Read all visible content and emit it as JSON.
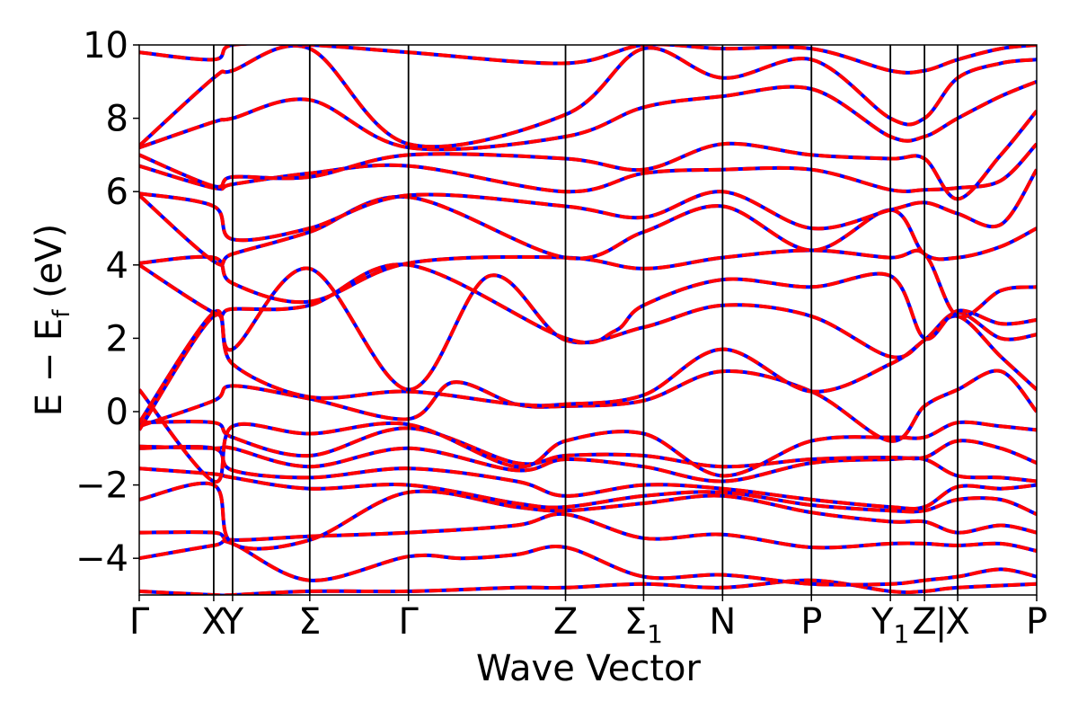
{
  "chart_data": {
    "type": "line",
    "xlabel": "Wave Vector",
    "ylabel": "E − E",
    "ylabel_sub": "f",
    "ylabel_unit": " (eV)",
    "ylim": [
      -5,
      10
    ],
    "yticks": [
      -4,
      -2,
      0,
      2,
      4,
      6,
      8,
      10
    ],
    "ytick_labels": [
      "−4",
      "−2",
      "0",
      "2",
      "4",
      "6",
      "8",
      "10"
    ],
    "xlim": [
      0,
      10
    ],
    "kpoints": [
      {
        "x": 0.0,
        "label": "Γ"
      },
      {
        "x": 0.83,
        "label": "X"
      },
      {
        "x": 1.04,
        "label": "Y"
      },
      {
        "x": 1.9,
        "label": "Σ"
      },
      {
        "x": 3.0,
        "label": "Γ"
      },
      {
        "x": 4.75,
        "label": "Z"
      },
      {
        "x": 5.62,
        "label": "Σ",
        "sub": "1"
      },
      {
        "x": 6.5,
        "label": "N"
      },
      {
        "x": 7.49,
        "label": "P"
      },
      {
        "x": 8.37,
        "label": "Y",
        "sub": "1"
      },
      {
        "x": 8.75,
        "label": "Z"
      },
      {
        "x": 9.12,
        "label": "X"
      },
      {
        "x": 10.0,
        "label": "P"
      }
    ],
    "break_mark": "|",
    "series_colors": {
      "primary": "#ff0000",
      "overlay": "#0000ff"
    },
    "bands": [
      {
        "x": [
          0,
          0.83,
          1.04,
          1.9,
          3.0,
          4.2,
          4.75,
          5.62,
          6.5,
          7.49,
          8.37,
          8.75,
          9.12,
          10.0
        ],
        "y": [
          -4.9,
          -5.0,
          -5.0,
          -4.9,
          -4.9,
          -4.8,
          -4.8,
          -4.7,
          -4.8,
          -4.6,
          -4.9,
          -4.9,
          -4.8,
          -4.7
        ]
      },
      {
        "x": [
          0,
          0.83,
          1.04,
          1.9,
          3.0,
          3.6,
          4.2,
          4.75,
          5.62,
          6.5,
          7.49,
          8.37,
          8.75,
          9.12,
          9.6,
          10.0
        ],
        "y": [
          -4.0,
          -3.65,
          -3.6,
          -4.6,
          -3.95,
          -4.0,
          -3.9,
          -3.7,
          -4.5,
          -4.45,
          -4.7,
          -4.7,
          -4.6,
          -4.5,
          -4.3,
          -4.5
        ]
      },
      {
        "x": [
          0,
          0.83,
          1.04,
          1.9,
          3.0,
          4.2,
          4.75,
          5.62,
          6.5,
          7.49,
          8.37,
          8.75,
          9.12,
          9.6,
          10.0
        ],
        "y": [
          -3.3,
          -3.3,
          -3.5,
          -3.4,
          -3.3,
          -3.1,
          -2.8,
          -3.45,
          -3.35,
          -3.7,
          -3.6,
          -3.6,
          -3.65,
          -3.6,
          -3.8
        ]
      },
      {
        "x": [
          0,
          0.83,
          1.04,
          1.9,
          3.0,
          4.2,
          4.75,
          5.62,
          6.5,
          7.49,
          8.37,
          8.75,
          9.12,
          9.6,
          10.0
        ],
        "y": [
          -2.4,
          -2.0,
          -3.6,
          -3.5,
          -2.2,
          -2.6,
          -2.7,
          -2.5,
          -2.3,
          -2.75,
          -3.0,
          -3.0,
          -3.3,
          -3.1,
          -3.3
        ]
      },
      {
        "x": [
          0,
          0.83,
          1.04,
          1.9,
          3.0,
          4.2,
          4.75,
          5.62,
          6.5,
          7.49,
          8.37,
          8.75,
          9.12,
          9.6,
          10.0
        ],
        "y": [
          -1.55,
          -1.7,
          -1.8,
          -2.1,
          -2.0,
          -2.5,
          -2.6,
          -2.3,
          -2.2,
          -2.55,
          -2.7,
          -2.7,
          -2.4,
          -2.4,
          -2.8
        ]
      },
      {
        "x": [
          0,
          0.83,
          1.04,
          1.9,
          3.0,
          4.2,
          4.75,
          5.62,
          6.5,
          7.49,
          8.37,
          8.75,
          9.12,
          9.6,
          10.0
        ],
        "y": [
          -1.0,
          -1.0,
          -1.6,
          -1.8,
          -1.55,
          -1.9,
          -2.3,
          -2.0,
          -2.1,
          -2.4,
          -2.6,
          -2.6,
          -2.05,
          -2.1,
          -2.0
        ]
      },
      {
        "x": [
          0,
          0.83,
          1.04,
          1.9,
          3.0,
          4.2,
          4.75,
          5.62,
          6.5,
          7.49,
          8.37,
          8.75,
          9.12,
          9.6,
          10.0
        ],
        "y": [
          -0.95,
          -1.0,
          -1.0,
          -1.5,
          -1.0,
          -1.6,
          -1.3,
          -1.5,
          -1.9,
          -1.4,
          -1.3,
          -1.3,
          -1.75,
          -1.8,
          -1.9
        ]
      },
      {
        "x": [
          0,
          0.83,
          1.04,
          1.9,
          3.0,
          4.2,
          4.75,
          5.62,
          6.5,
          7.49,
          8.37,
          8.75,
          9.12,
          9.6,
          10.0
        ],
        "y": [
          -0.3,
          -0.3,
          -0.7,
          -1.2,
          -0.45,
          -1.4,
          -1.2,
          -1.2,
          -1.5,
          -1.3,
          -1.25,
          -1.25,
          -0.8,
          -1.0,
          -1.4
        ]
      },
      {
        "x": [
          0,
          0.83,
          1.04,
          1.9,
          3.0,
          4.2,
          4.75,
          5.62,
          6.5,
          7.49,
          8.37,
          8.75,
          9.12,
          9.6,
          10.0
        ],
        "y": [
          0.6,
          -1.9,
          -0.4,
          -0.6,
          -0.35,
          -1.5,
          -0.8,
          -0.6,
          -1.75,
          -0.8,
          -0.7,
          -0.7,
          -0.3,
          -0.4,
          -0.5
        ]
      },
      {
        "x": [
          0,
          0.83,
          1.04,
          1.9,
          3.0,
          3.5,
          4.2,
          4.75,
          5.62,
          6.5,
          7.49,
          8.37,
          8.75,
          9.12,
          9.6,
          10.0
        ],
        "y": [
          -0.4,
          0.3,
          0.7,
          0.35,
          -0.2,
          0.8,
          0.2,
          0.15,
          0.3,
          1.1,
          0.55,
          -0.8,
          0.15,
          0.6,
          1.1,
          0.0
        ]
      },
      {
        "x": [
          0,
          0.83,
          1.04,
          1.9,
          3.0,
          4.2,
          4.75,
          5.62,
          6.5,
          7.49,
          8.37,
          8.75,
          9.12,
          9.6,
          10.0
        ],
        "y": [
          -0.5,
          2.6,
          1.3,
          0.4,
          0.55,
          0.2,
          0.2,
          0.45,
          1.7,
          0.55,
          1.3,
          1.95,
          2.6,
          1.5,
          0.6
        ]
      },
      {
        "x": [
          0,
          0.83,
          1.04,
          1.9,
          3.0,
          3.9,
          4.75,
          5.62,
          6.5,
          7.49,
          8.37,
          8.75,
          9.12,
          9.6,
          10.0
        ],
        "y": [
          -0.3,
          2.7,
          1.7,
          3.9,
          0.6,
          3.7,
          1.95,
          2.3,
          2.9,
          2.6,
          1.5,
          1.95,
          2.7,
          2.0,
          2.1
        ]
      },
      {
        "x": [
          0,
          0.83,
          1.04,
          1.9,
          3.0,
          4.75,
          5.3,
          5.62,
          6.5,
          7.49,
          8.37,
          8.75,
          9.12,
          9.6,
          10.0
        ],
        "y": [
          4.0,
          2.7,
          2.8,
          2.9,
          4.0,
          2.0,
          2.2,
          2.9,
          3.6,
          3.4,
          3.7,
          2.0,
          2.75,
          2.4,
          2.5
        ]
      },
      {
        "x": [
          0,
          0.83,
          1.04,
          1.9,
          3.0,
          4.75,
          5.62,
          6.5,
          7.49,
          8.37,
          8.75,
          9.12,
          9.6,
          10.0
        ],
        "y": [
          4.05,
          4.2,
          3.5,
          3.0,
          4.05,
          4.2,
          3.9,
          4.2,
          4.4,
          4.2,
          4.3,
          2.6,
          3.3,
          3.4
        ]
      },
      {
        "x": [
          0,
          0.83,
          1.04,
          1.9,
          3.0,
          4.75,
          5.62,
          6.5,
          7.49,
          8.37,
          8.75,
          9.12,
          9.6,
          10.0
        ],
        "y": [
          5.9,
          4.1,
          4.3,
          4.9,
          5.85,
          4.2,
          4.9,
          5.6,
          4.4,
          5.5,
          4.3,
          4.2,
          4.5,
          5.0
        ]
      },
      {
        "x": [
          0,
          0.83,
          1.04,
          1.9,
          3.0,
          4.75,
          5.62,
          6.5,
          7.49,
          8.37,
          8.75,
          9.12,
          9.6,
          10.0
        ],
        "y": [
          5.95,
          5.6,
          4.7,
          5.0,
          5.9,
          5.6,
          5.3,
          6.0,
          5.0,
          5.5,
          5.7,
          5.4,
          5.1,
          6.6
        ]
      },
      {
        "x": [
          0,
          0.83,
          1.04,
          1.9,
          3.0,
          4.75,
          5.62,
          6.5,
          7.49,
          8.37,
          8.75,
          9.12,
          9.6,
          10.0
        ],
        "y": [
          6.7,
          6.1,
          6.2,
          6.5,
          6.7,
          6.0,
          6.5,
          6.6,
          6.6,
          6.05,
          6.05,
          6.1,
          6.3,
          7.3
        ]
      },
      {
        "x": [
          0,
          0.83,
          1.04,
          1.9,
          3.0,
          4.75,
          5.62,
          6.5,
          7.49,
          8.37,
          8.75,
          9.12,
          9.6,
          10.0
        ],
        "y": [
          7.0,
          6.15,
          6.4,
          6.4,
          7.0,
          6.9,
          6.6,
          7.3,
          7.0,
          6.9,
          6.9,
          5.8,
          7.0,
          8.2
        ]
      },
      {
        "x": [
          0,
          0.83,
          1.04,
          1.9,
          3.0,
          4.75,
          5.62,
          6.5,
          7.49,
          8.37,
          8.75,
          9.12,
          9.6,
          10.0
        ],
        "y": [
          7.2,
          7.9,
          8.0,
          8.5,
          7.2,
          7.5,
          8.3,
          8.6,
          8.8,
          7.5,
          7.5,
          8.0,
          8.6,
          9.0
        ]
      },
      {
        "x": [
          0,
          0.83,
          1.04,
          1.9,
          3.0,
          4.75,
          5.62,
          6.5,
          7.49,
          8.37,
          8.75,
          9.12,
          9.6,
          10.0
        ],
        "y": [
          7.25,
          9.1,
          9.3,
          9.9,
          7.3,
          8.1,
          9.9,
          9.1,
          9.6,
          8.0,
          8.0,
          9.1,
          9.5,
          9.6
        ]
      },
      {
        "x": [
          0,
          0.83,
          1.04,
          1.9,
          3.0,
          4.75,
          5.62,
          6.5,
          7.49,
          8.37,
          8.75,
          9.12,
          9.6,
          10.0
        ],
        "y": [
          9.8,
          9.6,
          10.0,
          10.0,
          9.8,
          9.5,
          10.0,
          9.9,
          9.9,
          9.3,
          9.3,
          9.6,
          9.9,
          10.0
        ]
      }
    ]
  }
}
